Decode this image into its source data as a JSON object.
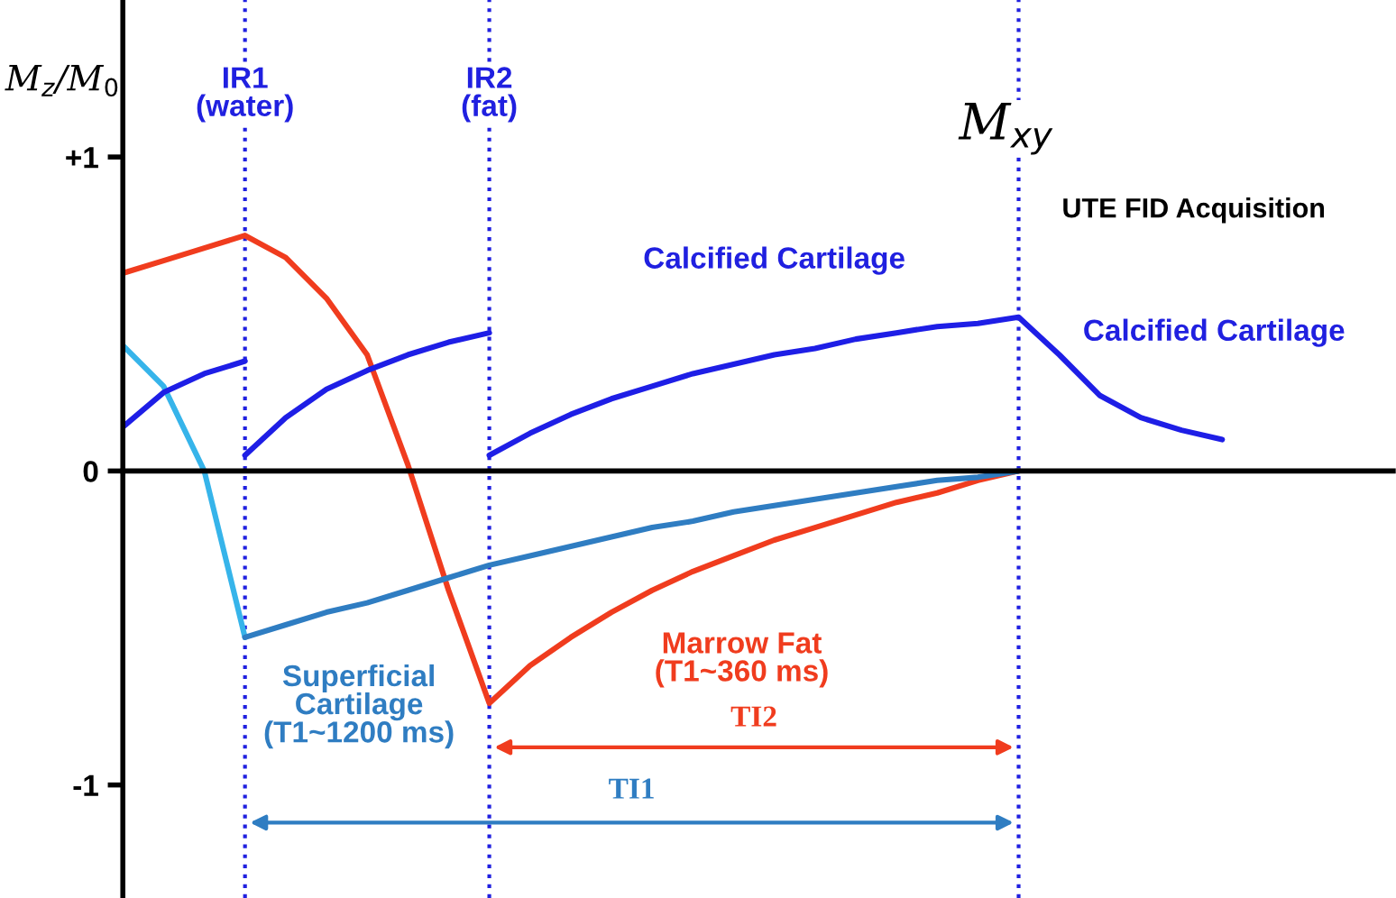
{
  "chart_data": {
    "type": "line",
    "ylabel": "M$_{z}$/M$_{0}$",
    "categories": [
      null,
      null,
      null,
      null,
      null,
      null,
      null,
      null,
      null,
      null,
      null,
      null,
      null,
      null,
      null,
      null,
      null,
      null,
      null,
      null,
      null,
      null,
      null,
      null,
      null,
      null,
      null,
      null
    ],
    "series": [
      {
        "color": "#f03c1e",
        "values": [
          0.63,
          0.67,
          0.71,
          0.75,
          0.68,
          0.55,
          0.37,
          0.02,
          -0.38,
          -0.74,
          -0.62,
          -0.53,
          -0.45,
          -0.38,
          -0.32,
          -0.27,
          -0.22,
          -0.18,
          -0.14,
          -0.1,
          -0.07,
          -0.03,
          0,
          null,
          null,
          null,
          null,
          null
        ]
      },
      {
        "color": "#36b4ea",
        "values": [
          0.4,
          0.27,
          0.0,
          -0.53,
          null,
          null,
          null,
          null,
          null,
          null,
          null,
          null,
          null,
          null,
          null,
          null,
          null,
          null,
          null,
          null,
          null,
          null,
          null,
          null,
          null,
          null,
          null,
          null
        ]
      },
      {
        "color": "#2f7dc2",
        "values": [
          null,
          null,
          null,
          -0.53,
          -0.49,
          -0.45,
          -0.42,
          -0.38,
          -0.34,
          -0.3,
          -0.27,
          -0.24,
          -0.21,
          -0.18,
          -0.16,
          -0.13,
          -0.11,
          -0.09,
          -0.07,
          -0.05,
          -0.03,
          -0.02,
          0,
          null,
          null,
          null,
          null,
          null
        ]
      },
      {
        "color": "#1e1ee6",
        "values": [
          0.14,
          0.25,
          0.31,
          0.35,
          null,
          null,
          null,
          null,
          null,
          null,
          null,
          null,
          null,
          null,
          null,
          null,
          null,
          null,
          null,
          null,
          null,
          null,
          null,
          null,
          null,
          null,
          null,
          null
        ]
      },
      {
        "color": "#1e1ee6",
        "values": [
          null,
          null,
          null,
          0.05,
          0.17,
          0.26,
          0.32,
          0.37,
          0.41,
          0.44,
          null,
          null,
          null,
          null,
          null,
          null,
          null,
          null,
          null,
          null,
          null,
          null,
          null,
          null,
          null,
          null,
          null,
          null
        ]
      },
      {
        "color": "#1e1ee6",
        "values": [
          null,
          null,
          null,
          null,
          null,
          null,
          null,
          null,
          null,
          0.05,
          0.12,
          0.18,
          0.23,
          0.27,
          0.31,
          0.34,
          0.37,
          0.39,
          0.42,
          0.44,
          0.46,
          0.47,
          0.49,
          0.37,
          0.24,
          0.17,
          0.13,
          0.1
        ]
      }
    ],
    "ylim": [
      -1.36,
      1.5
    ],
    "yticks": [
      {
        "value": 1,
        "label": "+1"
      },
      0,
      {
        "value": -1,
        "label": "-1"
      }
    ],
    "tick_labels": "y",
    "annotations": [
      "Calcified Cartilage",
      "Calcified Cartilage",
      "UTE FID Acquisition",
      "Superficial\nCartilage\n(T1~1200 ms)",
      "Marrow Fat\n(T1~360 ms)",
      "TI2",
      "TI1",
      "IR1\n(water)",
      "IR2\n(fat)",
      "M$_{xy}$"
    ],
    "grid": "x",
    "legend": false,
    "marker": "none",
    "line_style": "solid"
  }
}
